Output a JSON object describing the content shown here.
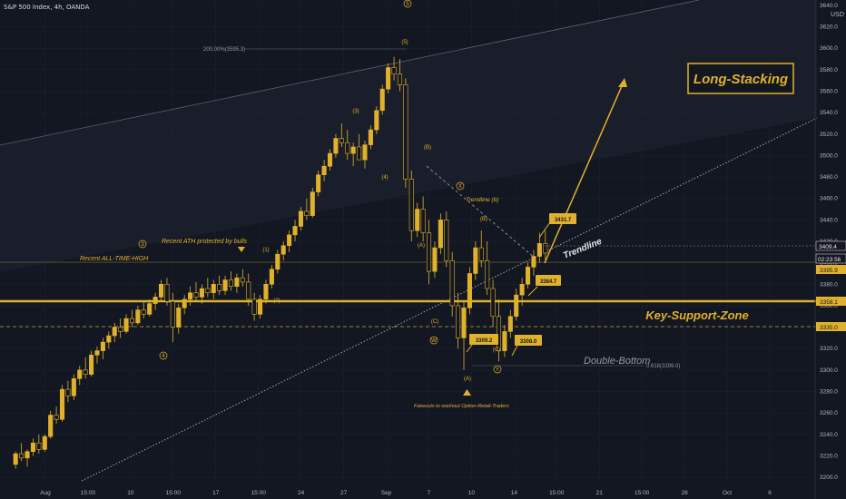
{
  "header": {
    "title": "S&P 500 Index, 4h, OANDA",
    "currency": "USD"
  },
  "chart_data": {
    "type": "candlestick",
    "ylim": [
      3195,
      3645
    ],
    "y_ticks": [
      3200,
      3220,
      3240,
      3260,
      3280,
      3300,
      3320,
      3340,
      3360,
      3380,
      3400,
      3420,
      3440,
      3460,
      3480,
      3500,
      3520,
      3540,
      3560,
      3580,
      3600,
      3620,
      3640
    ],
    "x_ticks": [
      "Aug",
      "15:00",
      "10",
      "15:00",
      "17",
      "15:00",
      "24",
      "27",
      "Sep",
      "7",
      "10",
      "14",
      "15:00",
      "21",
      "15:00",
      "28",
      "Oct",
      "6"
    ],
    "price_labels": {
      "last": "3409.4",
      "countdown": "02:23:56",
      "level_a": "3395.9",
      "key_support": "3358.1",
      "support_low": "3335.0"
    },
    "annotations": {
      "long_stacking": "Long-Stacking",
      "key_support_zone": "Key-Support-Zone",
      "trendline": "Trendline",
      "trendline_b": "Trendline (b)",
      "double_bottom": "Double-Bottom",
      "fib_618": "0.618(3299.0)",
      "fib_200": "200.00%(3595.3)",
      "recent_ath_protected": "Recent ATH protected by bulls",
      "recent_ath": "Recent ALL-TIME-HIGH",
      "fakeouts": "Fakeouts to washout Option-Retail-Traders",
      "box_3431": "3431.7",
      "box_3384": "3384.7",
      "box_3309": "3309.2",
      "box_3308": "3308.0"
    },
    "wave_labels": {
      "w3_circle": "3",
      "w4_circle": "4",
      "w5_circle": "5",
      "w1": "(1)",
      "w2": "(2)",
      "w3": "(3)",
      "w4": "(4)",
      "w5": "(5)",
      "A": "(A)",
      "B": "(B)",
      "C": "(C)",
      "B2": "(B)",
      "A2": "(A)",
      "C2": "(C)",
      "W": "W",
      "X": "X",
      "Y": "Y"
    },
    "key_levels": [
      3358.1,
      3335.0,
      3395.9
    ],
    "ath_level": 3388,
    "candles": [
      [
        3212,
        3224,
        3208,
        3222
      ],
      [
        3222,
        3232,
        3215,
        3218
      ],
      [
        3218,
        3226,
        3210,
        3224
      ],
      [
        3224,
        3236,
        3220,
        3232
      ],
      [
        3232,
        3240,
        3222,
        3226
      ],
      [
        3226,
        3240,
        3224,
        3238
      ],
      [
        3238,
        3262,
        3236,
        3258
      ],
      [
        3258,
        3266,
        3250,
        3254
      ],
      [
        3254,
        3286,
        3252,
        3282
      ],
      [
        3282,
        3290,
        3270,
        3276
      ],
      [
        3276,
        3296,
        3272,
        3292
      ],
      [
        3292,
        3304,
        3286,
        3300
      ],
      [
        3300,
        3312,
        3292,
        3296
      ],
      [
        3296,
        3318,
        3294,
        3314
      ],
      [
        3314,
        3322,
        3306,
        3318
      ],
      [
        3318,
        3330,
        3310,
        3326
      ],
      [
        3326,
        3336,
        3320,
        3332
      ],
      [
        3332,
        3344,
        3326,
        3340
      ],
      [
        3340,
        3348,
        3330,
        3336
      ],
      [
        3336,
        3352,
        3334,
        3348
      ],
      [
        3348,
        3356,
        3340,
        3344
      ],
      [
        3344,
        3360,
        3342,
        3356
      ],
      [
        3356,
        3364,
        3348,
        3352
      ],
      [
        3352,
        3366,
        3350,
        3362
      ],
      [
        3362,
        3372,
        3356,
        3368
      ],
      [
        3368,
        3384,
        3364,
        3380
      ],
      [
        3380,
        3386,
        3360,
        3364
      ],
      [
        3364,
        3372,
        3326,
        3340
      ],
      [
        3340,
        3362,
        3334,
        3358
      ],
      [
        3358,
        3370,
        3352,
        3366
      ],
      [
        3366,
        3378,
        3360,
        3372
      ],
      [
        3372,
        3382,
        3364,
        3368
      ],
      [
        3368,
        3380,
        3362,
        3376
      ],
      [
        3376,
        3386,
        3368,
        3372
      ],
      [
        3372,
        3384,
        3366,
        3380
      ],
      [
        3380,
        3388,
        3370,
        3374
      ],
      [
        3374,
        3388,
        3370,
        3384
      ],
      [
        3384,
        3392,
        3374,
        3378
      ],
      [
        3378,
        3390,
        3372,
        3386
      ],
      [
        3386,
        3394,
        3378,
        3382
      ],
      [
        3382,
        3390,
        3360,
        3366
      ],
      [
        3366,
        3372,
        3346,
        3352
      ],
      [
        3352,
        3370,
        3348,
        3366
      ],
      [
        3366,
        3384,
        3362,
        3380
      ],
      [
        3380,
        3398,
        3376,
        3394
      ],
      [
        3394,
        3412,
        3390,
        3408
      ],
      [
        3408,
        3420,
        3402,
        3416
      ],
      [
        3416,
        3430,
        3410,
        3426
      ],
      [
        3426,
        3440,
        3420,
        3434
      ],
      [
        3434,
        3452,
        3430,
        3448
      ],
      [
        3448,
        3460,
        3440,
        3444
      ],
      [
        3444,
        3470,
        3442,
        3466
      ],
      [
        3466,
        3486,
        3462,
        3482
      ],
      [
        3482,
        3496,
        3476,
        3490
      ],
      [
        3490,
        3506,
        3486,
        3502
      ],
      [
        3502,
        3520,
        3498,
        3516
      ],
      [
        3516,
        3530,
        3508,
        3512
      ],
      [
        3512,
        3524,
        3496,
        3502
      ],
      [
        3502,
        3512,
        3490,
        3508
      ],
      [
        3508,
        3520,
        3500,
        3496
      ],
      [
        3496,
        3514,
        3488,
        3510
      ],
      [
        3510,
        3528,
        3506,
        3524
      ],
      [
        3524,
        3546,
        3520,
        3542
      ],
      [
        3542,
        3566,
        3538,
        3562
      ],
      [
        3562,
        3586,
        3558,
        3582
      ],
      [
        3582,
        3592,
        3570,
        3576
      ],
      [
        3576,
        3590,
        3560,
        3566
      ],
      [
        3566,
        3572,
        3470,
        3478
      ],
      [
        3478,
        3486,
        3420,
        3430
      ],
      [
        3430,
        3456,
        3424,
        3450
      ],
      [
        3450,
        3462,
        3420,
        3428
      ],
      [
        3428,
        3440,
        3380,
        3392
      ],
      [
        3392,
        3420,
        3386,
        3414
      ],
      [
        3414,
        3446,
        3408,
        3440
      ],
      [
        3440,
        3448,
        3396,
        3402
      ],
      [
        3402,
        3410,
        3350,
        3360
      ],
      [
        3360,
        3372,
        3320,
        3330
      ],
      [
        3330,
        3364,
        3300,
        3358
      ],
      [
        3358,
        3396,
        3352,
        3390
      ],
      [
        3390,
        3420,
        3384,
        3414
      ],
      [
        3414,
        3430,
        3396,
        3402
      ],
      [
        3402,
        3420,
        3370,
        3376
      ],
      [
        3376,
        3384,
        3340,
        3350
      ],
      [
        3350,
        3366,
        3308,
        3318
      ],
      [
        3318,
        3342,
        3312,
        3336
      ],
      [
        3336,
        3356,
        3330,
        3350
      ],
      [
        3350,
        3376,
        3346,
        3370
      ],
      [
        3370,
        3386,
        3360,
        3380
      ],
      [
        3380,
        3400,
        3376,
        3396
      ],
      [
        3396,
        3412,
        3388,
        3406
      ],
      [
        3406,
        3428,
        3400,
        3418
      ],
      [
        3418,
        3430,
        3400,
        3409
      ]
    ]
  }
}
